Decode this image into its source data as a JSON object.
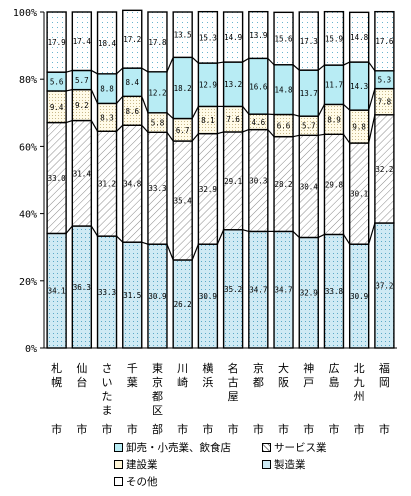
{
  "chart_data": {
    "type": "bar",
    "stacked": true,
    "percent": true,
    "ylim": [
      0,
      100
    ],
    "yticks": [
      "0%",
      "20%",
      "40%",
      "60%",
      "80%",
      "100%"
    ],
    "grid": false,
    "legend_position": "bottom",
    "categories": [
      "札幌市",
      "仙台市",
      "さいたま市",
      "千葉市",
      "東京都区部",
      "川崎市",
      "横浜市",
      "名古屋市",
      "京都市",
      "大阪市",
      "神戸市",
      "広島市",
      "北九州市",
      "福岡市"
    ],
    "series": [
      {
        "name": "製造業",
        "color": "#cce9f3",
        "pattern": "dots",
        "values": [
          34.1,
          36.3,
          33.3,
          31.5,
          30.9,
          26.2,
          30.9,
          35.2,
          34.7,
          34.7,
          32.9,
          33.8,
          30.9,
          37.2
        ]
      },
      {
        "name": "サービス業",
        "color": "#ffffff",
        "pattern": "hatch",
        "values": [
          33.0,
          31.4,
          31.2,
          34.8,
          33.3,
          35.4,
          32.9,
          29.1,
          30.3,
          28.2,
          30.4,
          29.8,
          30.1,
          32.2
        ]
      },
      {
        "name": "建設業",
        "color": "#fffbe6",
        "pattern": "fine-dots",
        "values": [
          9.4,
          9.2,
          8.3,
          8.6,
          5.8,
          6.7,
          8.1,
          7.6,
          4.6,
          6.6,
          5.7,
          8.9,
          9.8,
          7.8
        ]
      },
      {
        "name": "卸売・小売業、飲食店",
        "color": "#b8ecf4",
        "pattern": "solid",
        "values": [
          5.6,
          5.7,
          8.8,
          8.4,
          12.2,
          18.2,
          12.9,
          13.2,
          16.6,
          14.8,
          13.7,
          11.7,
          14.3,
          5.3
        ]
      },
      {
        "name": "その他",
        "color": "#ffffff",
        "pattern": "sparse-dots",
        "values": [
          17.9,
          17.4,
          18.4,
          17.2,
          17.8,
          13.5,
          15.3,
          14.9,
          13.9,
          15.6,
          17.3,
          15.9,
          14.8,
          17.6
        ]
      }
    ]
  },
  "legend": {
    "items": [
      {
        "label": "卸売・小売業、飲食店",
        "swatch": "solid-light-cyan"
      },
      {
        "label": "サービス業",
        "swatch": "hatch"
      },
      {
        "label": "建設業",
        "swatch": "fine-dots"
      },
      {
        "label": "製造業",
        "swatch": "dots-cyan"
      },
      {
        "label": "その他",
        "swatch": "sparse-dots"
      }
    ]
  }
}
